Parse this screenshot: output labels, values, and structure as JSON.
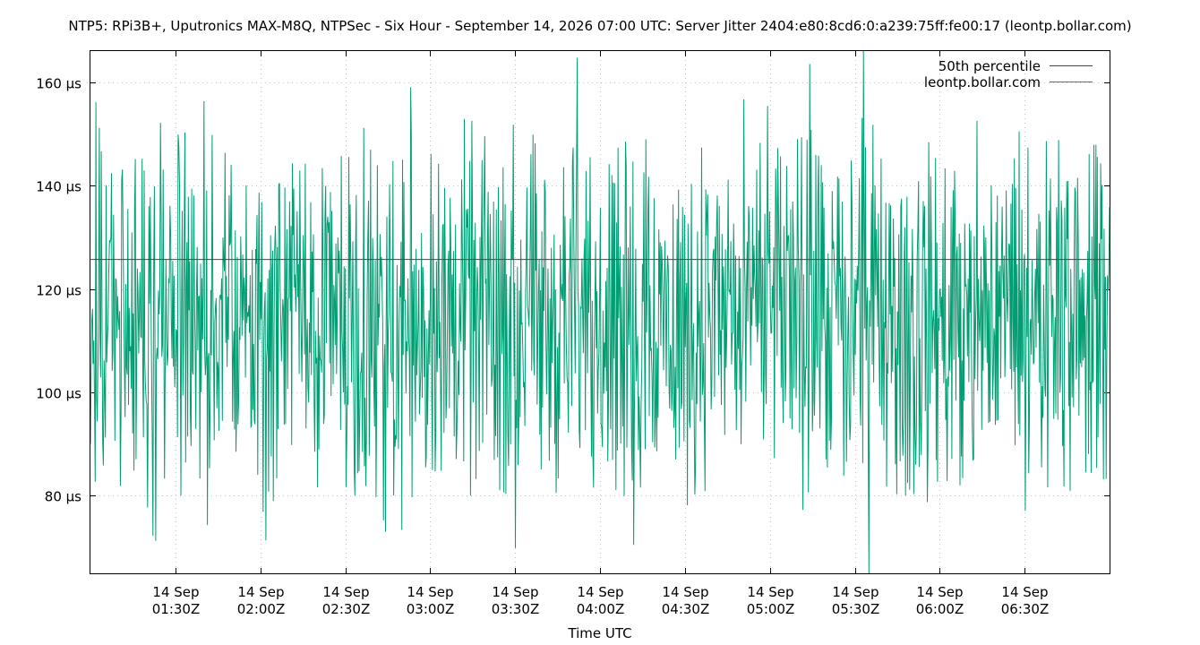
{
  "chart_data": {
    "type": "line",
    "title": "NTP5: RPi3B+, Uputronics MAX-M8Q, NTPSec - Six Hour - September 14, 2026 07:00 UTC: Server Jitter 2404:e80:8cd6:0:a239:75ff:fe00:17 (leontp.bollar.com)",
    "xlabel": "Time UTC",
    "ylabel": "",
    "x_range": [
      "2026-09-14T01:00Z",
      "2026-09-14T07:00Z"
    ],
    "ylim": [
      65,
      166
    ],
    "y_unit": "µs",
    "y_ticks": [
      80,
      100,
      120,
      140,
      160
    ],
    "y_tick_labels": [
      "80 µs",
      "100 µs",
      "120 µs",
      "140 µs",
      "160 µs"
    ],
    "x_ticks": [
      {
        "time": "2026-09-14T01:30Z",
        "line1": "14 Sep",
        "line2": "01:30Z"
      },
      {
        "time": "2026-09-14T02:00Z",
        "line1": "14 Sep",
        "line2": "02:00Z"
      },
      {
        "time": "2026-09-14T02:30Z",
        "line1": "14 Sep",
        "line2": "02:30Z"
      },
      {
        "time": "2026-09-14T03:00Z",
        "line1": "14 Sep",
        "line2": "03:00Z"
      },
      {
        "time": "2026-09-14T03:30Z",
        "line1": "14 Sep",
        "line2": "03:30Z"
      },
      {
        "time": "2026-09-14T04:00Z",
        "line1": "14 Sep",
        "line2": "04:00Z"
      },
      {
        "time": "2026-09-14T04:30Z",
        "line1": "14 Sep",
        "line2": "04:30Z"
      },
      {
        "time": "2026-09-14T05:00Z",
        "line1": "14 Sep",
        "line2": "05:00Z"
      },
      {
        "time": "2026-09-14T05:30Z",
        "line1": "14 Sep",
        "line2": "05:30Z"
      },
      {
        "time": "2026-09-14T06:00Z",
        "line1": "14 Sep",
        "line2": "06:00Z"
      },
      {
        "time": "2026-09-14T06:30Z",
        "line1": "14 Sep",
        "line2": "06:30Z"
      }
    ],
    "grid": true,
    "legend_position": "top-right",
    "series": [
      {
        "name": "50th percentile",
        "color": "#8b1a6b",
        "kind": "constant",
        "value": 125.7
      },
      {
        "name": "leontp.bollar.com",
        "color": "#009e73",
        "kind": "jitter",
        "typical_range": [
          87,
          142
        ],
        "min": 65.0,
        "max": 166.0,
        "peaks": [
          {
            "time": "2026-09-14T03:52Z",
            "value": 164.7
          },
          {
            "time": "2026-09-14T05:14Z",
            "value": 163.5
          },
          {
            "time": "2026-09-14T05:33Z",
            "value": 166.0
          },
          {
            "time": "2026-09-14T02:53Z",
            "value": 159.0
          },
          {
            "time": "2026-09-14T01:02Z",
            "value": 156.1
          },
          {
            "time": "2026-09-14T01:40Z",
            "value": 156.3
          }
        ],
        "troughs": [
          {
            "time": "2026-09-14T05:35Z",
            "value": 65.0
          },
          {
            "time": "2026-09-14T03:30Z",
            "value": 69.9
          },
          {
            "time": "2026-09-14T04:12Z",
            "value": 70.5
          },
          {
            "time": "2026-09-14T01:23Z",
            "value": 71.3
          },
          {
            "time": "2026-09-14T02:02Z",
            "value": 71.4
          }
        ]
      }
    ]
  }
}
